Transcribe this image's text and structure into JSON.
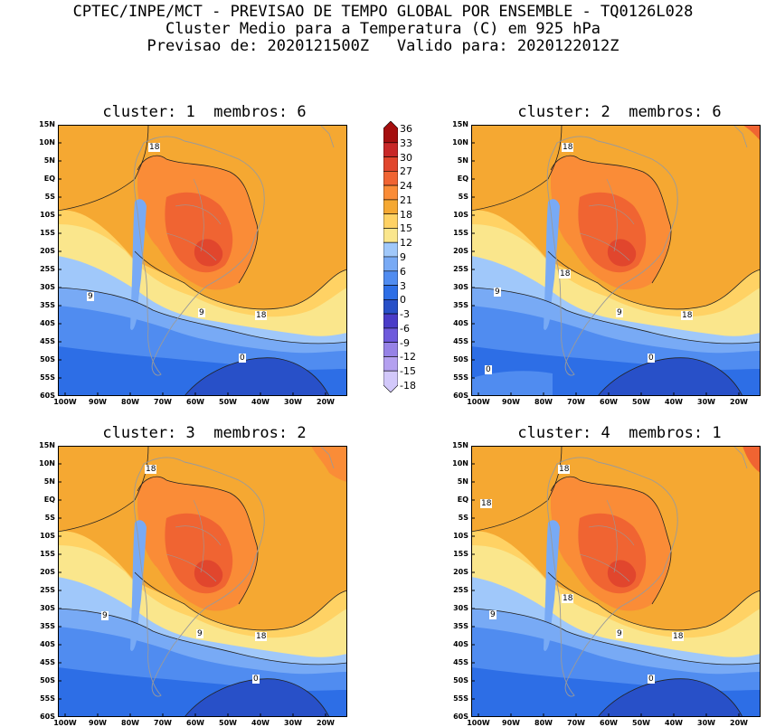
{
  "header": {
    "line1": "CPTEC/INPE/MCT - PREVISAO DE TEMPO GLOBAL POR ENSEMBLE - TQ0126L028",
    "line2": "Cluster Medio para a Temperatura (C) em 925 hPa",
    "line3": "Previsao de: 2020121500Z   Valido para: 2020122012Z"
  },
  "panels": [
    {
      "title": "cluster: 1  membros: 6"
    },
    {
      "title": "cluster: 2  membros: 6"
    },
    {
      "title": "cluster: 3  membros: 2"
    },
    {
      "title": "cluster: 4  membros: 1"
    }
  ],
  "lat_labels": [
    "15N",
    "10N",
    "5N",
    "EQ",
    "5S",
    "10S",
    "15S",
    "20S",
    "25S",
    "30S",
    "35S",
    "40S",
    "45S",
    "50S",
    "55S",
    "60S"
  ],
  "lon_labels": [
    "100W",
    "90W",
    "80W",
    "70W",
    "60W",
    "50W",
    "40W",
    "30W",
    "20W"
  ],
  "contour_labels": {
    "p1": [
      "18",
      "9",
      "9",
      "18",
      "0"
    ],
    "p2": [
      "18",
      "18",
      "9",
      "9",
      "18",
      "0",
      "0"
    ],
    "p3": [
      "18",
      "9",
      "9",
      "18",
      "0"
    ],
    "p4": [
      "18",
      "18",
      "18",
      "9",
      "9",
      "18",
      "0"
    ]
  },
  "colorbar": {
    "levels": [
      "36",
      "33",
      "30",
      "27",
      "24",
      "21",
      "18",
      "15",
      "12",
      "9",
      "6",
      "3",
      "0",
      "-3",
      "-6",
      "-9",
      "-12",
      "-15",
      "-18"
    ],
    "colors": [
      "#a50f0f",
      "#c82828",
      "#e1462d",
      "#f06432",
      "#fa8c37",
      "#f5a832",
      "#ffd264",
      "#fae68c",
      "#a0c8fa",
      "#78aaf5",
      "#508cf0",
      "#2d6ee6",
      "#2850c8",
      "#4a3cc8",
      "#6e5adc",
      "#9682e6",
      "#b4a0f0",
      "#d2c8fa"
    ]
  },
  "colors": {
    "t27": "#f06432",
    "t24": "#fa8c37",
    "t21": "#f5a832",
    "t18": "#ffd264",
    "t15": "#fae68c",
    "t12": "#a0c8fa",
    "t9": "#78aaf5",
    "t6": "#508cf0",
    "t3": "#2d6ee6",
    "t0": "#2850c8",
    "tm3": "#4a3cc8",
    "t30": "#e1462d"
  }
}
